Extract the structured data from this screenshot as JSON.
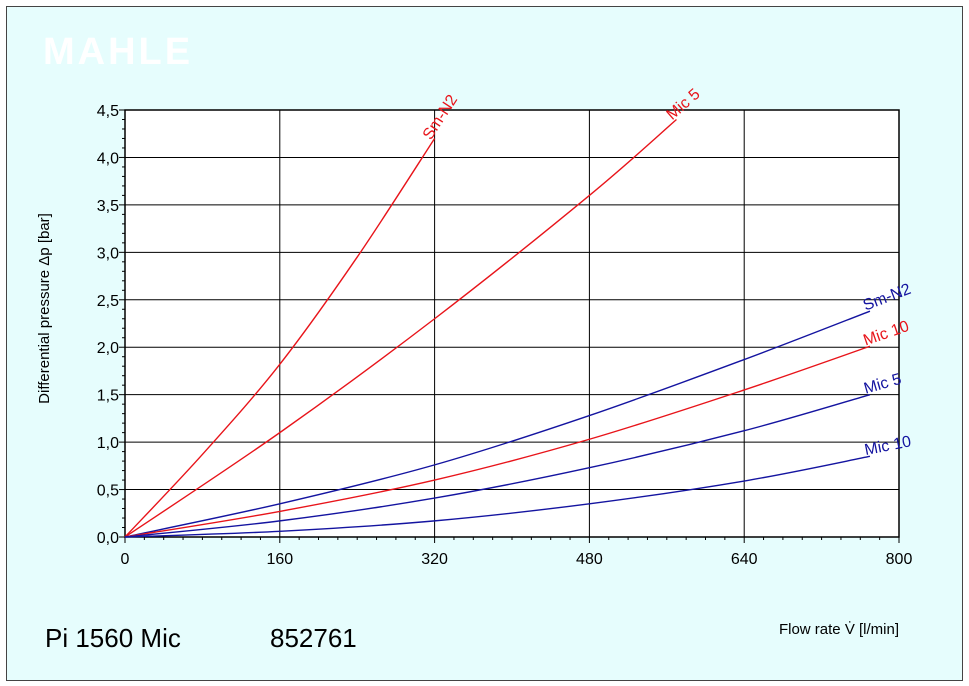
{
  "chart_data": {
    "type": "line",
    "watermark": "MAHLE",
    "caption_model": "Pi 1560 Mic",
    "caption_number": "852761",
    "xlabel": "Flow rate V̇ [l/min]",
    "ylabel": "Differential pressure Δp [bar]",
    "xlim": [
      0,
      800
    ],
    "ylim": [
      0,
      4.5
    ],
    "x_ticks": [
      0,
      160,
      320,
      480,
      640,
      800
    ],
    "x_tick_labels": [
      "0",
      "160",
      "320",
      "480",
      "640",
      "800"
    ],
    "y_ticks": [
      0,
      0.5,
      1,
      1.5,
      2,
      2.5,
      3,
      3.5,
      4,
      4.5
    ],
    "y_tick_labels": [
      "0,0",
      "0,5",
      "1,0",
      "1,5",
      "2,0",
      "2,5",
      "3,0",
      "3,5",
      "4,0",
      "4,5"
    ],
    "grid": true,
    "series": [
      {
        "name": "Sm-N2",
        "color": "#e8141a",
        "x": [
          0,
          80,
          160,
          240,
          320
        ],
        "y": [
          0,
          0.87,
          1.82,
          2.95,
          4.2
        ]
      },
      {
        "name": "Mic 5",
        "color": "#e8141a",
        "x": [
          0,
          160,
          320,
          480,
          570
        ],
        "y": [
          0,
          1.1,
          2.3,
          3.6,
          4.4
        ]
      },
      {
        "name": "Sm-N2",
        "color": "#1414a0",
        "x": [
          0,
          160,
          320,
          480,
          640,
          770
        ],
        "y": [
          0,
          0.35,
          0.76,
          1.28,
          1.87,
          2.38
        ]
      },
      {
        "name": "Mic 10",
        "color": "#e8141a",
        "x": [
          0,
          160,
          320,
          480,
          640,
          770
        ],
        "y": [
          0,
          0.27,
          0.6,
          1.03,
          1.55,
          2.01
        ]
      },
      {
        "name": "Mic 5",
        "color": "#1414a0",
        "x": [
          0,
          160,
          320,
          480,
          640,
          770
        ],
        "y": [
          0,
          0.17,
          0.41,
          0.73,
          1.12,
          1.5
        ]
      },
      {
        "name": "Mic 10",
        "color": "#1414a0",
        "x": [
          0,
          160,
          320,
          480,
          640,
          770
        ],
        "y": [
          0,
          0.06,
          0.17,
          0.35,
          0.59,
          0.85
        ]
      }
    ]
  }
}
